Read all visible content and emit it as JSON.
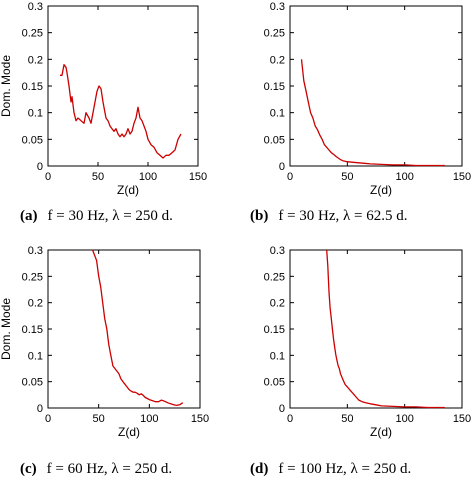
{
  "chart_data": [
    {
      "id": "a",
      "type": "line",
      "caption_letter": "(a)",
      "caption": "f = 30 Hz, λ = 250 d.",
      "xlabel": "Z(d)",
      "ylabel": "Dom. Mode",
      "xlim": [
        0,
        150
      ],
      "ylim": [
        0,
        0.3
      ],
      "xticks": [
        "0",
        "50",
        "100",
        "150"
      ],
      "yticks": [
        "0",
        "0.05",
        "0.1",
        "0.15",
        "0.2",
        "0.25",
        "0.3"
      ],
      "color": "#cc0000",
      "x": [
        12,
        14,
        16,
        18,
        19,
        21,
        23,
        24,
        26,
        28,
        30,
        33,
        36,
        38,
        41,
        43,
        45,
        47,
        49,
        51,
        53,
        55,
        57,
        58,
        60,
        61,
        62,
        64,
        66,
        68,
        70,
        72,
        74,
        76,
        78,
        80,
        82,
        84,
        86,
        88,
        90,
        92,
        94,
        96,
        98,
        100,
        103,
        106,
        109,
        112,
        115,
        118,
        121,
        124,
        127,
        130,
        133
      ],
      "y": [
        0.17,
        0.17,
        0.19,
        0.185,
        0.175,
        0.15,
        0.12,
        0.13,
        0.1,
        0.085,
        0.09,
        0.085,
        0.08,
        0.1,
        0.09,
        0.08,
        0.1,
        0.12,
        0.14,
        0.15,
        0.145,
        0.12,
        0.1,
        0.09,
        0.085,
        0.08,
        0.075,
        0.07,
        0.065,
        0.07,
        0.06,
        0.055,
        0.06,
        0.055,
        0.06,
        0.07,
        0.06,
        0.065,
        0.08,
        0.09,
        0.11,
        0.09,
        0.085,
        0.075,
        0.065,
        0.05,
        0.04,
        0.035,
        0.025,
        0.02,
        0.015,
        0.02,
        0.02,
        0.025,
        0.03,
        0.05,
        0.06
      ]
    },
    {
      "id": "b",
      "type": "line",
      "caption_letter": "(b)",
      "caption": "f = 30 Hz, λ = 62.5 d.",
      "xlabel": "Z(d)",
      "ylabel": "",
      "xlim": [
        0,
        150
      ],
      "ylim": [
        0,
        0.3
      ],
      "xticks": [
        "0",
        "50",
        "100",
        "150"
      ],
      "yticks": [
        "0",
        "0.05",
        "0.1",
        "0.15",
        "0.2",
        "0.25",
        "0.3"
      ],
      "color": "#cc0000",
      "x": [
        10,
        12,
        14,
        16,
        18,
        20,
        22,
        24,
        26,
        28,
        30,
        32,
        34,
        36,
        38,
        40,
        42,
        44,
        46,
        48,
        50,
        55,
        60,
        65,
        70,
        80,
        90,
        100,
        110,
        120,
        130,
        135
      ],
      "y": [
        0.2,
        0.16,
        0.14,
        0.12,
        0.1,
        0.09,
        0.075,
        0.068,
        0.058,
        0.05,
        0.04,
        0.035,
        0.03,
        0.025,
        0.022,
        0.018,
        0.015,
        0.012,
        0.01,
        0.009,
        0.008,
        0.007,
        0.006,
        0.005,
        0.004,
        0.003,
        0.002,
        0.002,
        0.001,
        0.001,
        0.001,
        0.001
      ]
    },
    {
      "id": "c",
      "type": "line",
      "caption_letter": "(c)",
      "caption": "f = 60 Hz, λ = 250 d.",
      "xlabel": "Z(d)",
      "ylabel": "Dom. Mode",
      "xlim": [
        0,
        150
      ],
      "ylim": [
        0,
        0.3
      ],
      "xticks": [
        "0",
        "50",
        "100",
        "150"
      ],
      "yticks": [
        "0",
        "0.05",
        "0.1",
        "0.15",
        "0.2",
        "0.25",
        "0.3"
      ],
      "color": "#cc0000",
      "x": [
        44,
        46,
        48,
        50,
        52,
        54,
        56,
        58,
        60,
        62,
        64,
        66,
        68,
        70,
        72,
        74,
        76,
        78,
        80,
        82,
        84,
        86,
        88,
        90,
        92,
        94,
        96,
        98,
        100,
        103,
        106,
        109,
        112,
        115,
        118,
        121,
        124,
        127,
        130,
        133
      ],
      "y": [
        0.3,
        0.29,
        0.28,
        0.25,
        0.23,
        0.2,
        0.17,
        0.15,
        0.12,
        0.1,
        0.08,
        0.075,
        0.07,
        0.065,
        0.055,
        0.05,
        0.045,
        0.04,
        0.035,
        0.032,
        0.03,
        0.03,
        0.028,
        0.025,
        0.027,
        0.024,
        0.02,
        0.018,
        0.016,
        0.014,
        0.012,
        0.012,
        0.015,
        0.013,
        0.01,
        0.008,
        0.006,
        0.005,
        0.006,
        0.01
      ]
    },
    {
      "id": "d",
      "type": "line",
      "caption_letter": "(d)",
      "caption": "f = 100 Hz, λ = 250 d.",
      "xlabel": "Z(d)",
      "ylabel": "",
      "xlim": [
        0,
        150
      ],
      "ylim": [
        0,
        0.3
      ],
      "xticks": [
        "0",
        "50",
        "100",
        "150"
      ],
      "yticks": [
        "0",
        "0.05",
        "0.1",
        "0.15",
        "0.2",
        "0.25",
        "0.3"
      ],
      "color": "#cc0000",
      "x": [
        32,
        33,
        34,
        35,
        36,
        37,
        38,
        39,
        40,
        41,
        42,
        43,
        44,
        46,
        48,
        50,
        52,
        54,
        56,
        58,
        60,
        63,
        66,
        70,
        75,
        80,
        90,
        100,
        110,
        120,
        130,
        135
      ],
      "y": [
        0.3,
        0.27,
        0.22,
        0.19,
        0.17,
        0.15,
        0.13,
        0.115,
        0.1,
        0.09,
        0.08,
        0.075,
        0.065,
        0.055,
        0.045,
        0.04,
        0.035,
        0.03,
        0.025,
        0.02,
        0.015,
        0.012,
        0.01,
        0.008,
        0.006,
        0.004,
        0.003,
        0.002,
        0.002,
        0.001,
        0.001,
        0.001
      ]
    }
  ]
}
